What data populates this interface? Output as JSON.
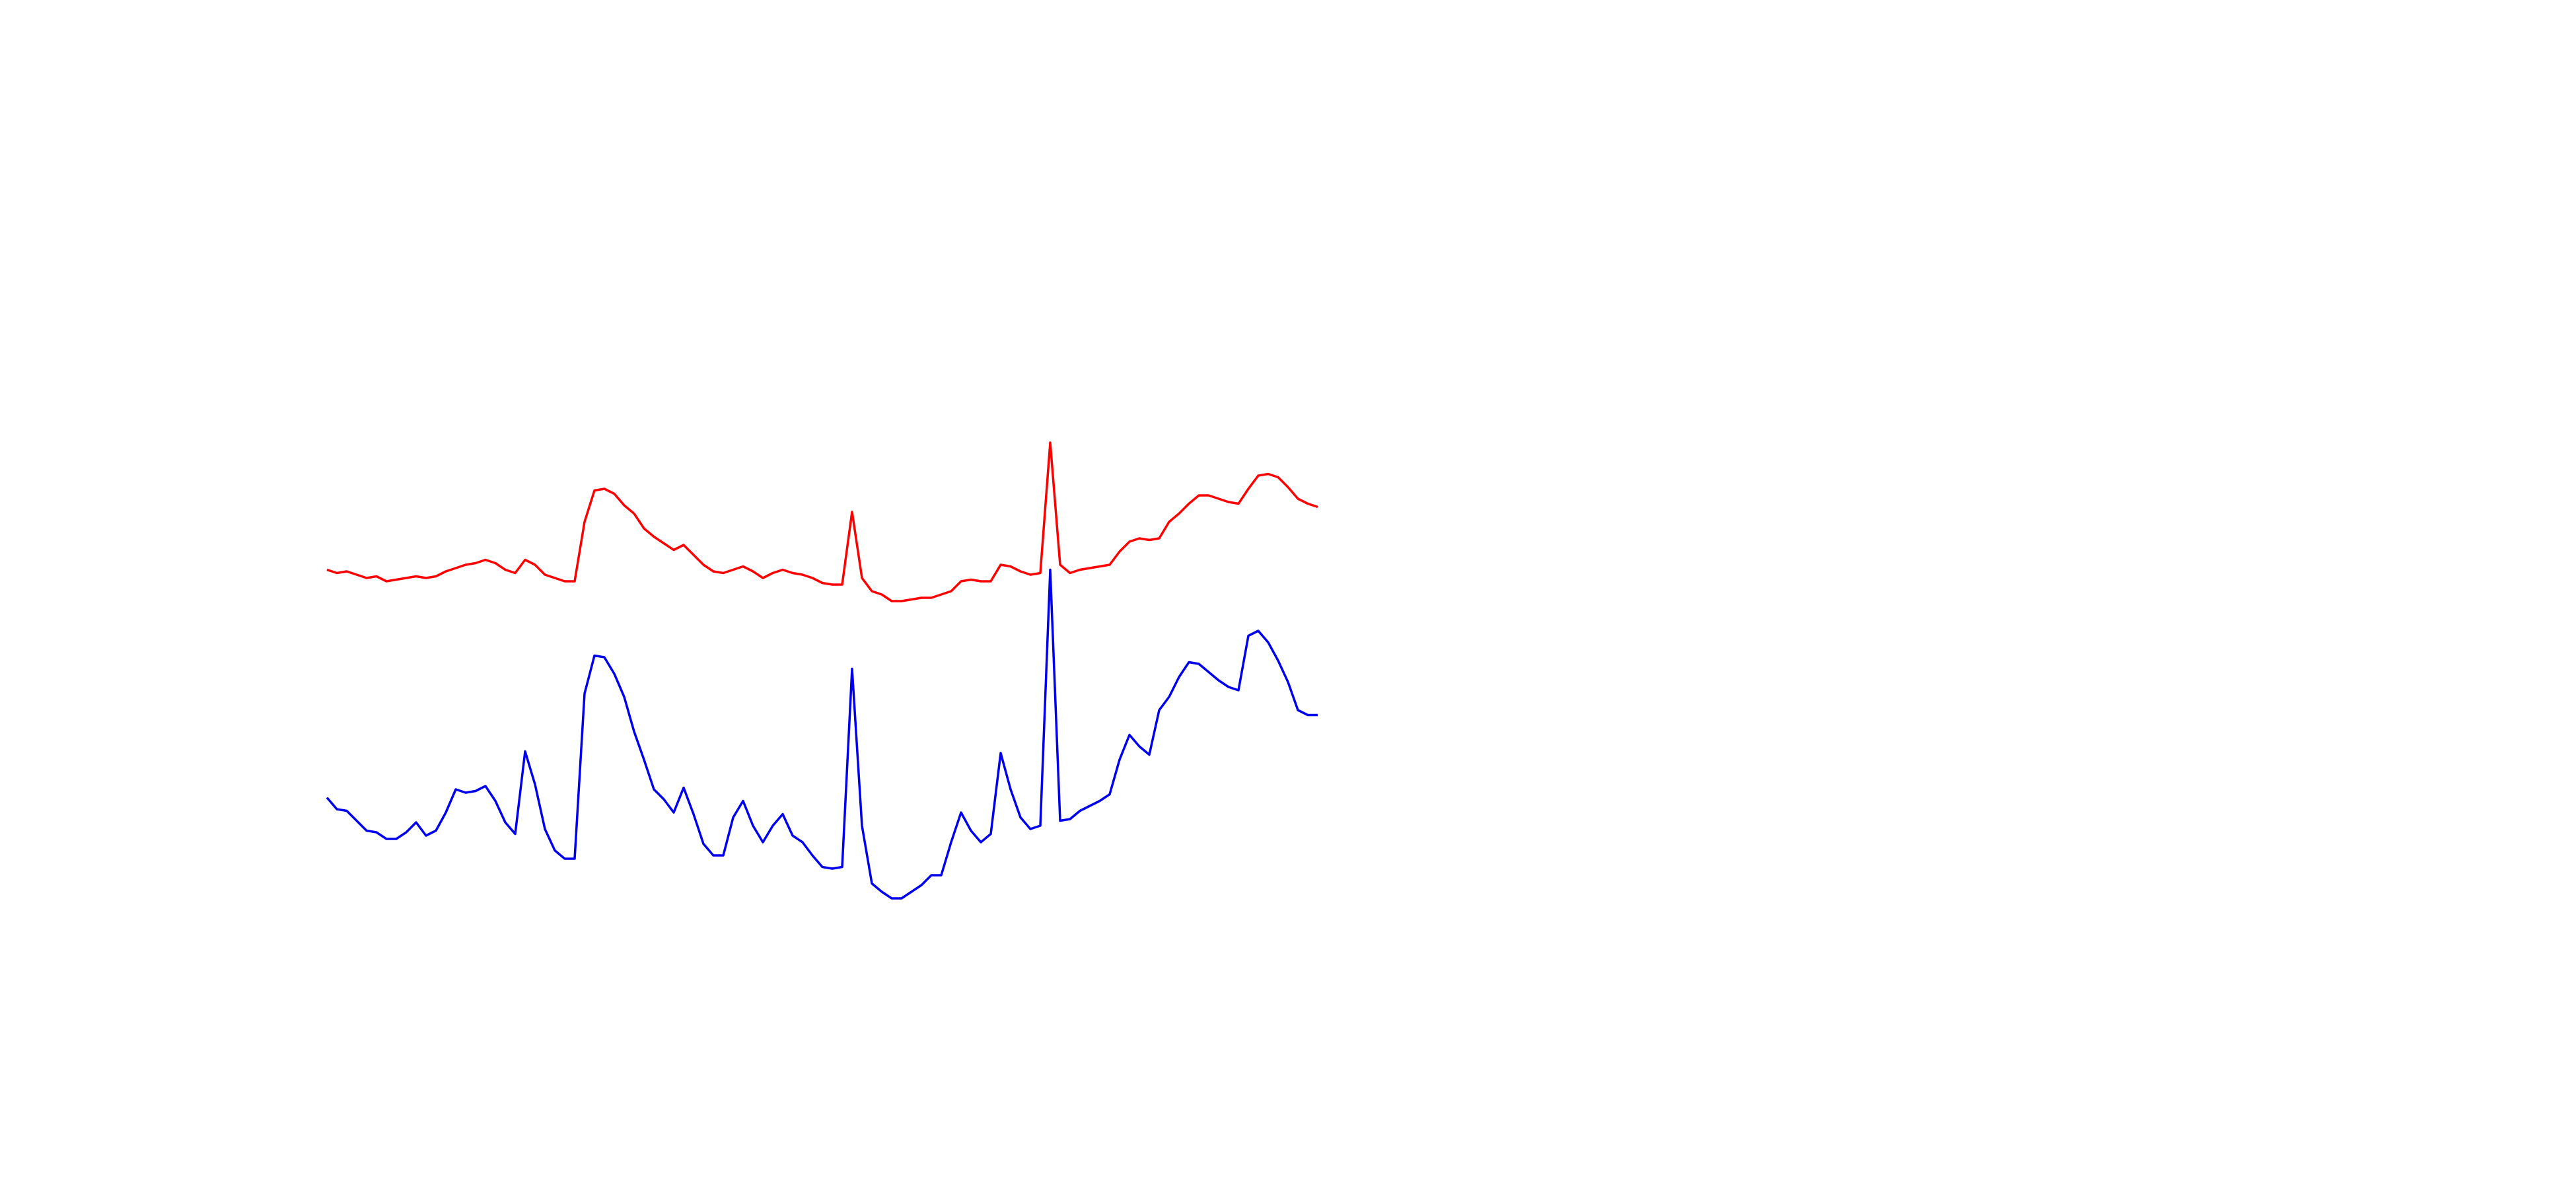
{
  "chart_data": {
    "type": "line",
    "categories": [
      null,
      null,
      null,
      null,
      null,
      null,
      null,
      null,
      null,
      null,
      null,
      null,
      null,
      null,
      null,
      null,
      null,
      null,
      null,
      null,
      null,
      null,
      null,
      null,
      null,
      null,
      null,
      null,
      null,
      null,
      null,
      null,
      null,
      null,
      null,
      null,
      null,
      null,
      null,
      null,
      null,
      null,
      null,
      null,
      null,
      null,
      null,
      null,
      null,
      null,
      null,
      null,
      null,
      null,
      null,
      null,
      null,
      null,
      null,
      null,
      null,
      null,
      null,
      null,
      null,
      null,
      null,
      null,
      null,
      null,
      null,
      null,
      null,
      null,
      null,
      null,
      null,
      null,
      null,
      null,
      null,
      null,
      null,
      null,
      null,
      null,
      null,
      null,
      null,
      null,
      null,
      null,
      null,
      null,
      null,
      null,
      null,
      null,
      null,
      null,
      null
    ],
    "series": [
      {
        "color": "#ff0000",
        "values": [
          375,
          373,
          374,
          372,
          370,
          371,
          368,
          369,
          370,
          371,
          370,
          371,
          374,
          376,
          378,
          379,
          381,
          379,
          375,
          373,
          381,
          378,
          372,
          370,
          368,
          368,
          404,
          423,
          424,
          421,
          414,
          409,
          400,
          395,
          391,
          387,
          390,
          384,
          378,
          374,
          373,
          375,
          377,
          374,
          370,
          373,
          375,
          373,
          372,
          370,
          367,
          366,
          366,
          410,
          370,
          362,
          360,
          356,
          356,
          357,
          358,
          358,
          360,
          362,
          368,
          369,
          368,
          368,
          378,
          377,
          374,
          372,
          373,
          452,
          378,
          373,
          375,
          376,
          377,
          378,
          386,
          392,
          394,
          393,
          394,
          404,
          409,
          415,
          420,
          420,
          418,
          416,
          415,
          424,
          432,
          433,
          431,
          425,
          418,
          415,
          413
        ]
      },
      {
        "color": "#0000ee",
        "values": [
          237,
          230,
          229,
          223,
          217,
          216,
          212,
          212,
          216,
          222,
          214,
          217,
          228,
          242,
          240,
          241,
          244,
          235,
          222,
          215,
          265,
          245,
          218,
          205,
          200,
          200,
          300,
          323,
          322,
          312,
          298,
          277,
          260,
          242,
          236,
          228,
          243,
          227,
          209,
          202,
          202,
          225,
          235,
          220,
          210,
          220,
          227,
          214,
          210,
          202,
          195,
          194,
          195,
          315,
          220,
          185,
          180,
          176,
          176,
          180,
          184,
          190,
          190,
          210,
          228,
          217,
          210,
          215,
          264,
          242,
          225,
          218,
          220,
          375,
          223,
          224,
          229,
          232,
          235,
          239,
          260,
          275,
          268,
          263,
          290,
          298,
          310,
          319,
          318,
          313,
          308,
          304,
          302,
          335,
          338,
          331,
          320,
          307,
          290,
          287,
          287
        ]
      }
    ],
    "ylim": [
      0,
      720
    ]
  }
}
